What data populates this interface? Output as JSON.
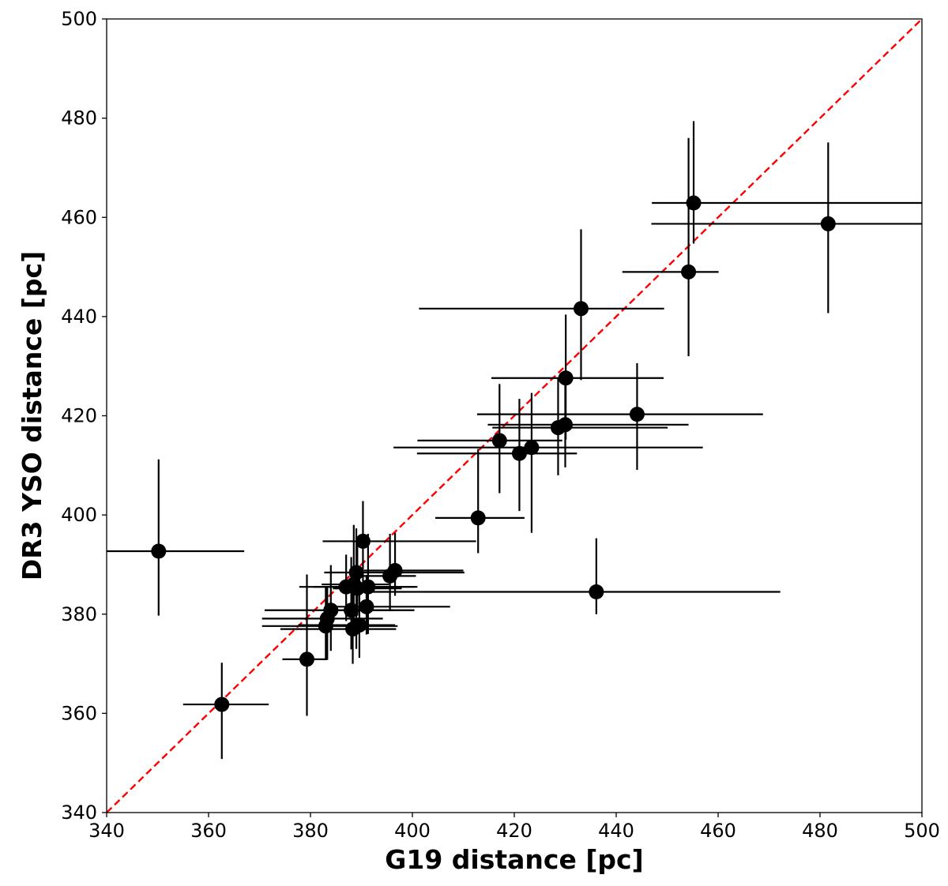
{
  "chart_data": {
    "type": "scatter",
    "title": "",
    "xlabel": "G19 distance [pc]",
    "ylabel": "DR3 YSO distance [pc]",
    "xlim": [
      340,
      500
    ],
    "ylim": [
      340,
      500
    ],
    "xticks": [
      "340",
      "360",
      "380",
      "400",
      "420",
      "440",
      "460",
      "480",
      "500"
    ],
    "yticks": [
      "340",
      "360",
      "380",
      "400",
      "420",
      "440",
      "460",
      "480",
      "500"
    ],
    "grid": false,
    "legend": "none",
    "reference_line": {
      "from": [
        340,
        340
      ],
      "to": [
        500,
        500
      ],
      "style": "dashed",
      "color": "#ff0000"
    },
    "marker_color": "#000000",
    "points": [
      {
        "x": 350.2,
        "y": 392.7,
        "xerr": [
          10.2,
          16.8
        ],
        "yerr": [
          13.0,
          18.5
        ]
      },
      {
        "x": 362.6,
        "y": 361.8,
        "xerr": [
          7.6,
          9.2
        ],
        "yerr": [
          11.0,
          8.4
        ]
      },
      {
        "x": 379.3,
        "y": 370.9,
        "xerr": [
          4.8,
          4.0
        ],
        "yerr": [
          11.4,
          17.1
        ]
      },
      {
        "x": 383.0,
        "y": 377.6,
        "xerr": [
          12.5,
          14.1
        ],
        "yerr": [
          6.8,
          7.9
        ]
      },
      {
        "x": 383.3,
        "y": 379.1,
        "xerr": [
          12.8,
          10.9
        ],
        "yerr": [
          8.3,
          6.4
        ]
      },
      {
        "x": 384.0,
        "y": 380.8,
        "xerr": [
          13.0,
          16.4
        ],
        "yerr": [
          8.2,
          9.1
        ]
      },
      {
        "x": 387.0,
        "y": 385.5,
        "xerr": [
          9.2,
          14.0
        ],
        "yerr": [
          6.9,
          6.5
        ]
      },
      {
        "x": 388.0,
        "y": 380.8,
        "xerr": [
          5.6,
          8.3
        ],
        "yerr": [
          7.9,
          10.7
        ]
      },
      {
        "x": 388.3,
        "y": 377.0,
        "xerr": [
          14.2,
          8.5
        ],
        "yerr": [
          7.0,
          12.6
        ]
      },
      {
        "x": 388.5,
        "y": 386.0,
        "xerr": [
          6.3,
          6.9
        ],
        "yerr": [
          9.4,
          12.0
        ]
      },
      {
        "x": 389.0,
        "y": 388.4,
        "xerr": [
          6.3,
          21.2
        ],
        "yerr": [
          15.4,
          8.9
        ]
      },
      {
        "x": 389.2,
        "y": 385.2,
        "xerr": [
          4.8,
          8.7
        ],
        "yerr": [
          5.5,
          9.0
        ]
      },
      {
        "x": 389.6,
        "y": 377.8,
        "xerr": [
          12.0,
          7.0
        ],
        "yerr": [
          6.6,
          11.4
        ]
      },
      {
        "x": 390.3,
        "y": 394.7,
        "xerr": [
          7.9,
          22.2
        ],
        "yerr": [
          8.2,
          8.1
        ]
      },
      {
        "x": 391.0,
        "y": 381.5,
        "xerr": [
          8.0,
          16.4
        ],
        "yerr": [
          5.6,
          6.4
        ]
      },
      {
        "x": 391.3,
        "y": 385.5,
        "xerr": [
          10.7,
          9.2
        ],
        "yerr": [
          9.5,
          10.7
        ]
      },
      {
        "x": 395.6,
        "y": 387.7,
        "xerr": [
          7.8,
          5.1
        ],
        "yerr": [
          7.1,
          8.5
        ]
      },
      {
        "x": 396.6,
        "y": 388.8,
        "xerr": [
          6.1,
          13.4
        ],
        "yerr": [
          5.1,
          7.6
        ]
      },
      {
        "x": 412.9,
        "y": 399.4,
        "xerr": [
          8.4,
          9.1
        ],
        "yerr": [
          7.1,
          13.9
        ]
      },
      {
        "x": 417.1,
        "y": 415.0,
        "xerr": [
          16.1,
          12.3
        ],
        "yerr": [
          10.6,
          11.4
        ]
      },
      {
        "x": 421.0,
        "y": 412.4,
        "xerr": [
          20.1,
          11.3
        ],
        "yerr": [
          11.6,
          11.0
        ]
      },
      {
        "x": 423.4,
        "y": 413.6,
        "xerr": [
          27.1,
          33.6
        ],
        "yerr": [
          17.2,
          11.0
        ]
      },
      {
        "x": 428.6,
        "y": 417.6,
        "xerr": [
          12.9,
          21.5
        ],
        "yerr": [
          9.6,
          10.0
        ]
      },
      {
        "x": 430.0,
        "y": 418.2,
        "xerr": [
          15.2,
          24.2
        ],
        "yerr": [
          8.6,
          9.7
        ]
      },
      {
        "x": 430.1,
        "y": 427.6,
        "xerr": [
          14.6,
          19.2
        ],
        "yerr": [
          12.4,
          12.8
        ]
      },
      {
        "x": 433.1,
        "y": 441.6,
        "xerr": [
          31.8,
          16.3
        ],
        "yerr": [
          14.4,
          16.0
        ]
      },
      {
        "x": 436.1,
        "y": 384.5,
        "xerr": [
          44.6,
          36.1
        ],
        "yerr": [
          4.5,
          10.8
        ]
      },
      {
        "x": 444.1,
        "y": 420.3,
        "xerr": [
          31.4,
          24.7
        ],
        "yerr": [
          11.2,
          10.3
        ]
      },
      {
        "x": 454.2,
        "y": 449.0,
        "xerr": [
          13.0,
          5.9
        ],
        "yerr": [
          17.0,
          27.0
        ]
      },
      {
        "x": 455.2,
        "y": 462.9,
        "xerr": [
          8.2,
          44.8
        ],
        "yerr": [
          8.2,
          16.5
        ]
      },
      {
        "x": 481.6,
        "y": 458.7,
        "xerr": [
          34.7,
          18.4
        ],
        "yerr": [
          18.0,
          16.4
        ]
      }
    ]
  }
}
